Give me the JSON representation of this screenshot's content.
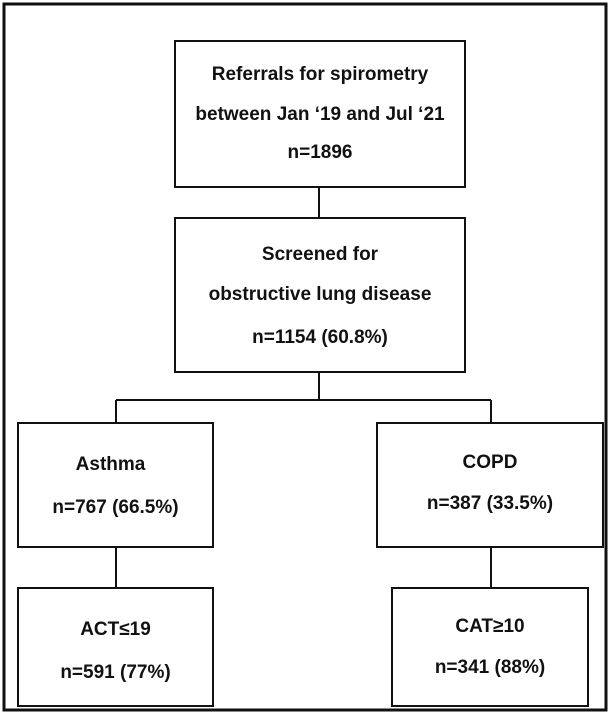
{
  "nodes": [
    {
      "lines": [
        "Referrals for spirometry",
        "between Jan ‘19 and Jul ‘21",
        "n=1896"
      ]
    },
    {
      "lines": [
        "Screened for",
        "obstructive lung disease",
        "n=1154 (60.8%)"
      ]
    },
    {
      "lines": [
        "Asthma",
        "n=767 (66.5%)"
      ]
    },
    {
      "lines": [
        "COPD",
        "n=387 (33.5%)"
      ]
    },
    {
      "lines": [
        "ACT≤19",
        "n=591 (77%)"
      ]
    },
    {
      "lines": [
        "CAT≥10",
        "n=341 (88%)"
      ]
    }
  ]
}
